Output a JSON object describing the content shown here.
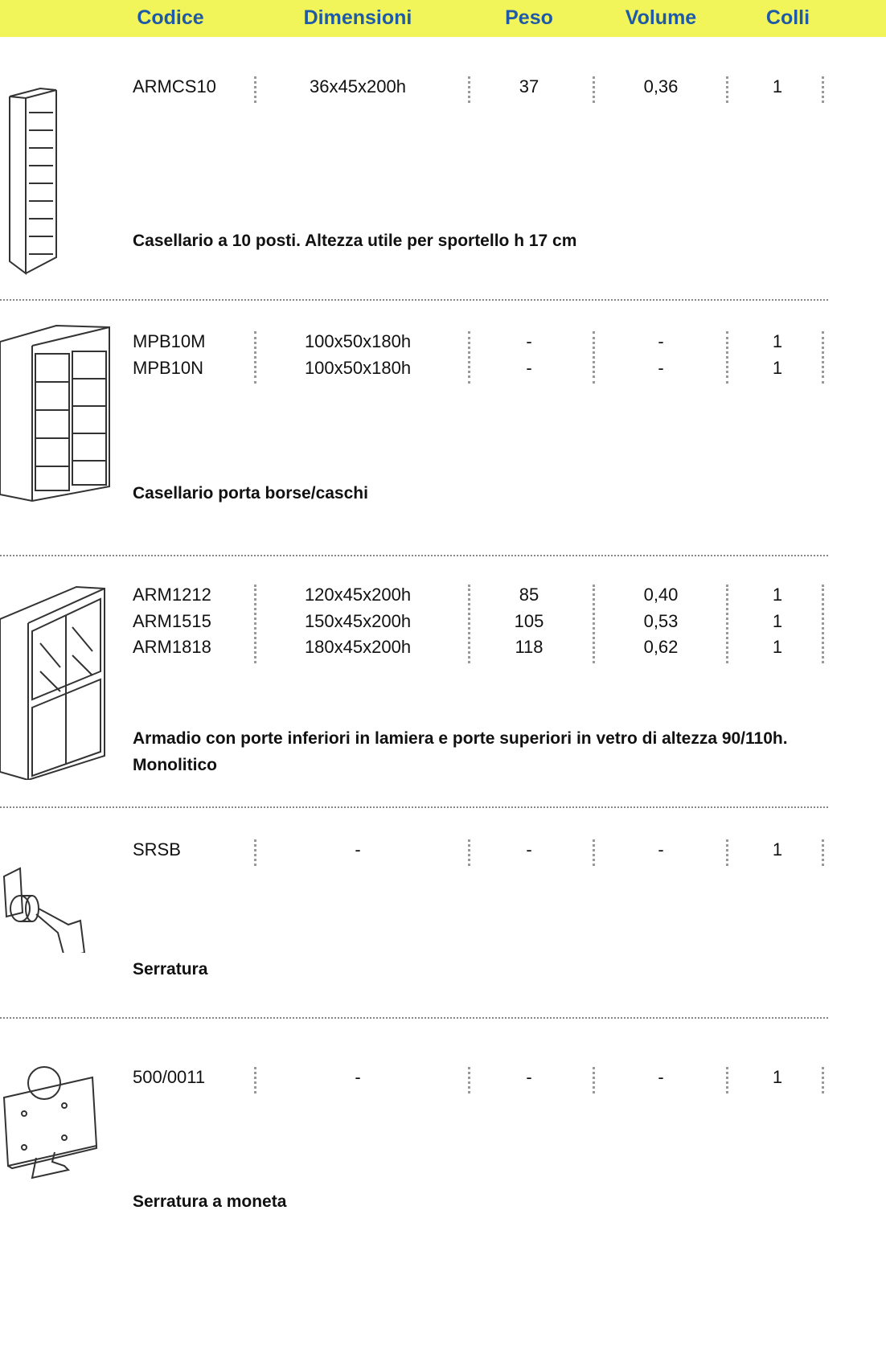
{
  "header": {
    "columns": [
      "Codice",
      "Dimensioni",
      "Peso",
      "Volume",
      "Colli"
    ]
  },
  "items": [
    {
      "rows": [
        [
          "ARMCS10",
          "36x45x200h",
          "37",
          "0,36",
          "1"
        ]
      ],
      "description": "Casellario a 10 posti. Altezza utile per sportello h 17 cm"
    },
    {
      "rows": [
        [
          "MPB10M",
          "100x50x180h",
          "-",
          "-",
          "1"
        ],
        [
          "MPB10N",
          "100x50x180h",
          "-",
          "-",
          "1"
        ]
      ],
      "description": "Casellario porta borse/caschi"
    },
    {
      "rows": [
        [
          "ARM1212",
          "120x45x200h",
          "85",
          "0,40",
          "1"
        ],
        [
          "ARM1515",
          "150x45x200h",
          "105",
          "0,53",
          "1"
        ],
        [
          "ARM1818",
          "180x45x200h",
          "118",
          "0,62",
          "1"
        ]
      ],
      "description": "Armadio con porte inferiori in lamiera e porte superiori in vetro di altezza 90/110h. Monolitico"
    },
    {
      "rows": [
        [
          "SRSB",
          "-",
          "-",
          "-",
          "1"
        ]
      ],
      "description": "Serratura"
    },
    {
      "rows": [
        [
          "500/0011",
          "-",
          "-",
          "-",
          "1"
        ]
      ],
      "description": "Serratura a moneta"
    }
  ]
}
